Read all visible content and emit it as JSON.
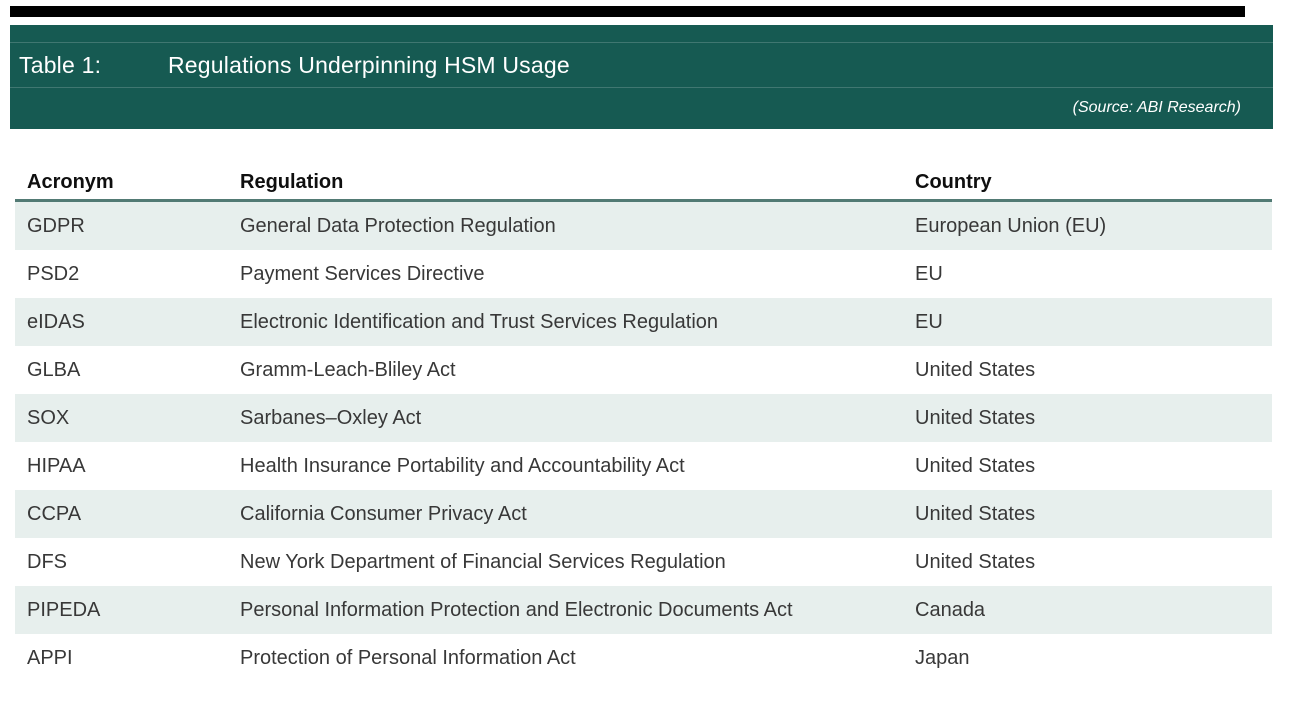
{
  "colors": {
    "band_bg": "#165a52",
    "band_text": "#ffffff",
    "stripe_bg": "#e7efed",
    "header_rule": "#527a74",
    "top_bar": "#000000",
    "body_text": "#383838"
  },
  "header_band": {
    "label": "Table 1:",
    "title": "Regulations Underpinning HSM Usage",
    "source": "(Source: ABI Research)"
  },
  "table": {
    "columns": [
      {
        "key": "acronym",
        "label": "Acronym"
      },
      {
        "key": "regulation",
        "label": "Regulation"
      },
      {
        "key": "country",
        "label": "Country"
      }
    ],
    "rows": [
      {
        "acronym": "GDPR",
        "regulation": "General Data Protection Regulation",
        "country": "European Union (EU)"
      },
      {
        "acronym": "PSD2",
        "regulation": "Payment Services Directive",
        "country": "EU"
      },
      {
        "acronym": "eIDAS",
        "regulation": "Electronic Identification and Trust Services Regulation",
        "country": "EU"
      },
      {
        "acronym": "GLBA",
        "regulation": "Gramm-Leach-Bliley Act",
        "country": "United States"
      },
      {
        "acronym": "SOX",
        "regulation": "Sarbanes–Oxley Act",
        "country": "United States"
      },
      {
        "acronym": "HIPAA",
        "regulation": "Health Insurance Portability and Accountability Act",
        "country": "United States"
      },
      {
        "acronym": "CCPA",
        "regulation": "California Consumer Privacy Act",
        "country": "United States"
      },
      {
        "acronym": "DFS",
        "regulation": "New York Department of Financial Services Regulation",
        "country": "United States"
      },
      {
        "acronym": "PIPEDA",
        "regulation": "Personal Information Protection and Electronic Documents Act",
        "country": "Canada"
      },
      {
        "acronym": "APPI",
        "regulation": "Protection of Personal Information Act",
        "country": "Japan"
      }
    ]
  }
}
